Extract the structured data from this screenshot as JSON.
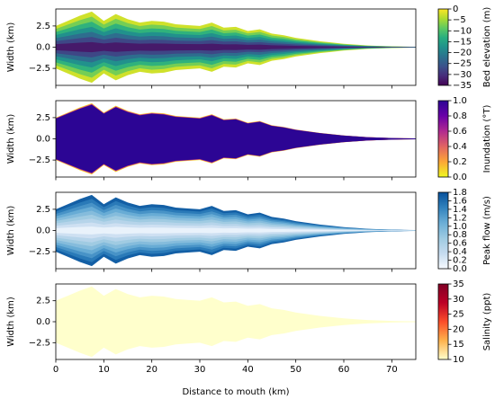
{
  "estuary": {
    "x": [
      0,
      2.5,
      5,
      7.5,
      10,
      12.5,
      15,
      17.5,
      20,
      22.5,
      25,
      27.5,
      30,
      32.5,
      35,
      37.5,
      40,
      42.5,
      45,
      47.5,
      50,
      52.5,
      55,
      57.5,
      60,
      62.5,
      65,
      67.5,
      70,
      72.5,
      75
    ],
    "half_width": [
      2.5,
      3.1,
      3.7,
      4.2,
      3.1,
      3.9,
      3.3,
      2.9,
      3.1,
      3.0,
      2.7,
      2.6,
      2.5,
      2.9,
      2.3,
      2.4,
      1.9,
      2.1,
      1.6,
      1.4,
      1.1,
      0.9,
      0.7,
      0.55,
      0.4,
      0.3,
      0.2,
      0.15,
      0.1,
      0.07,
      0.05
    ]
  },
  "chart_data": [
    {
      "type": "contourf",
      "ylabel": "Width (km)",
      "xlim": [
        0,
        75
      ],
      "xticks": [
        0,
        10,
        20,
        30,
        40,
        50,
        60,
        70
      ],
      "ylim": [
        -4.5,
        4.5
      ],
      "yticks": [
        {
          "value": -2.5,
          "label": "−2.5"
        },
        {
          "value": 0,
          "label": "0.0"
        },
        {
          "value": 2.5,
          "label": "2.5"
        }
      ],
      "colorbar_label": "Bed elevation (m)",
      "clim": [
        -35,
        0
      ],
      "cticks": [
        {
          "value": -35,
          "label": "−35"
        },
        {
          "value": -30,
          "label": "−30"
        },
        {
          "value": -25,
          "label": "−25"
        },
        {
          "value": -20,
          "label": "−20"
        },
        {
          "value": -15,
          "label": "−15"
        },
        {
          "value": -10,
          "label": "−10"
        },
        {
          "value": -5,
          "label": "−5"
        },
        0
      ],
      "colors": [
        "#440154",
        "#472d7b",
        "#3b528b",
        "#2c728e",
        "#21918c",
        "#28ae80",
        "#5ec962",
        "#addc30",
        "#fde725"
      ]
    },
    {
      "type": "edgefill",
      "ylabel": "Width (km)",
      "xlim": [
        0,
        75
      ],
      "xticks": [
        0,
        10,
        20,
        30,
        40,
        50,
        60,
        70
      ],
      "ylim": [
        -4.5,
        4.5
      ],
      "yticks": [
        {
          "value": -2.5,
          "label": "−2.5"
        },
        {
          "value": 0,
          "label": "0.0"
        },
        {
          "value": 2.5,
          "label": "2.5"
        }
      ],
      "colorbar_label": "Inundation (°T)",
      "clim": [
        0,
        1
      ],
      "cticks": [
        {
          "value": 0,
          "label": "0.0"
        },
        0.2,
        0.4,
        0.6,
        0.8,
        {
          "value": 1,
          "label": "1.0"
        }
      ],
      "colors": [
        "#f0f921",
        "#fca636",
        "#e16462",
        "#b12a90",
        "#6a00a8",
        "#2c0594"
      ]
    },
    {
      "type": "contourf",
      "ylabel": "Width (km)",
      "xlim": [
        0,
        75
      ],
      "xticks": [
        0,
        10,
        20,
        30,
        40,
        50,
        60,
        70
      ],
      "ylim": [
        -4.5,
        4.5
      ],
      "yticks": [
        {
          "value": -2.5,
          "label": "−2.5"
        },
        {
          "value": 0,
          "label": "0.0"
        },
        {
          "value": 2.5,
          "label": "2.5"
        }
      ],
      "colorbar_label": "Peak flow (m/s)",
      "clim": [
        0,
        1.8
      ],
      "cticks": [
        {
          "value": 0,
          "label": "0.0"
        },
        0.2,
        0.4,
        0.6,
        0.8,
        {
          "value": 1,
          "label": "1.0"
        },
        1.2,
        1.4,
        1.6,
        1.8
      ],
      "colors": [
        "#f7fbff",
        "#c6dbef",
        "#9ecae1",
        "#6baed6",
        "#3182bd",
        "#08519c"
      ]
    },
    {
      "type": "gradient",
      "ylabel": "Width (km)",
      "xlabel": "Distance to mouth (km)",
      "xlim": [
        0,
        75
      ],
      "xticks": [
        0,
        10,
        20,
        30,
        40,
        50,
        60,
        70
      ],
      "ylim": [
        -4.5,
        4.5
      ],
      "yticks": [
        {
          "value": -2.5,
          "label": "−2.5"
        },
        {
          "value": 0,
          "label": "0.0"
        },
        {
          "value": 2.5,
          "label": "2.5"
        }
      ],
      "colorbar_label": "Salinity (ppt)",
      "clim": [
        10,
        35
      ],
      "cticks": [
        10,
        15,
        20,
        25,
        30,
        35
      ],
      "colors": [
        "#ffffcc",
        "#feb24c",
        "#fc4e2a",
        "#bd0026",
        "#800026"
      ]
    }
  ]
}
